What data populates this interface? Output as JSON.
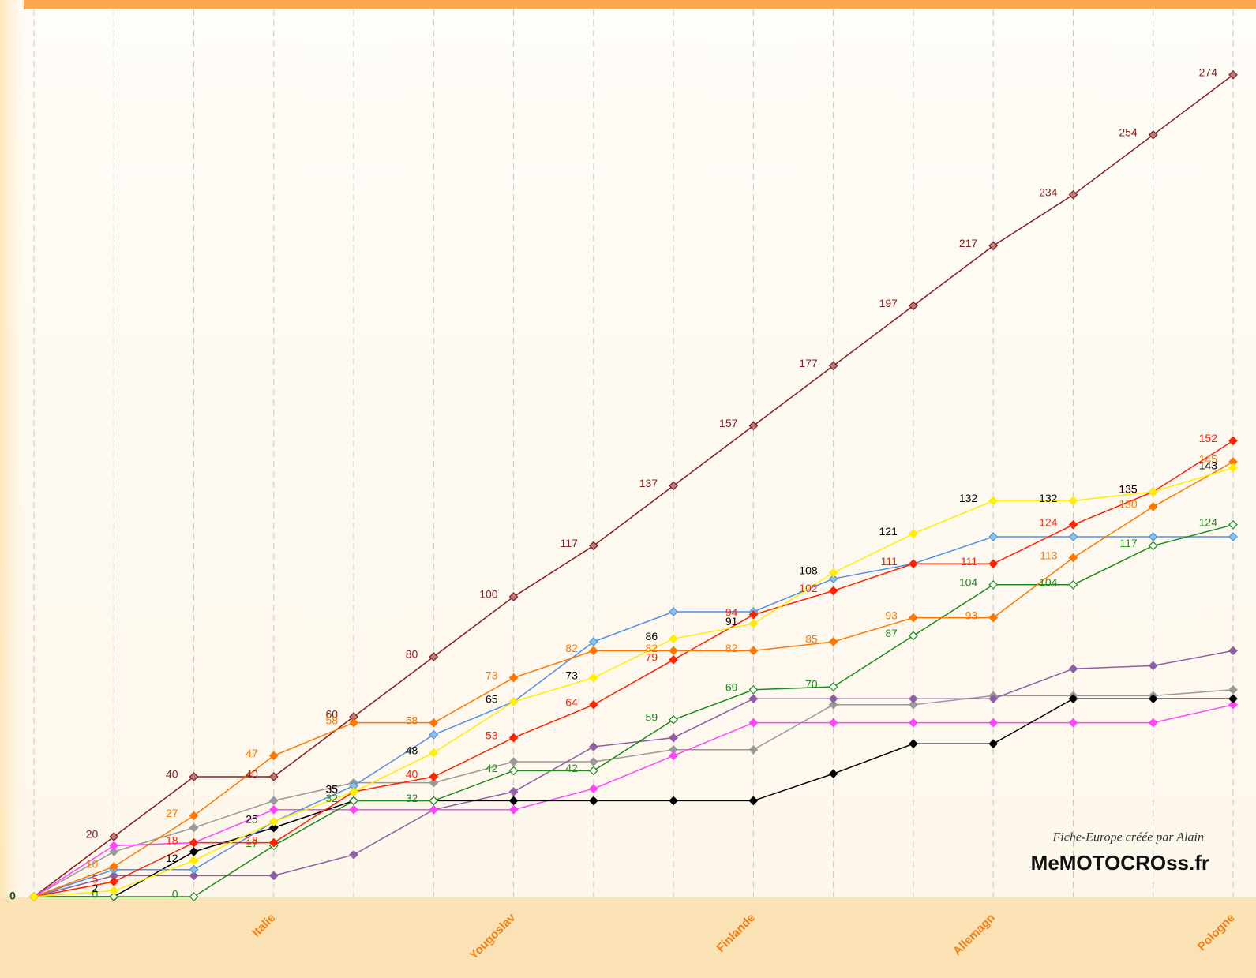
{
  "chart_data": {
    "type": "line",
    "categories": [
      null,
      null,
      null,
      "Italie",
      null,
      null,
      "Yougoslav",
      null,
      null,
      "Finlande",
      null,
      null,
      "Allemagn",
      null,
      null,
      "Pologne"
    ],
    "ylim": [
      0,
      295
    ],
    "yticks": [
      0
    ],
    "series": [
      {
        "color": "#8b1a1a",
        "marker_fill": "#b08080",
        "label_color": "#8b1a1a",
        "values": [
          0,
          20,
          40,
          40,
          60,
          80,
          100,
          117,
          137,
          157,
          177,
          197,
          217,
          234,
          254,
          274
        ]
      },
      {
        "color": "#999999",
        "values": [
          0,
          15,
          23,
          32,
          38,
          38,
          45,
          45,
          49,
          49,
          64,
          64,
          67,
          67,
          67,
          69
        ]
      },
      {
        "color": "#8e5ea2",
        "values": [
          0,
          7,
          7,
          7,
          14,
          29,
          35,
          50,
          53,
          66,
          66,
          66,
          66,
          76,
          77,
          82
        ]
      },
      {
        "color": "#ff44ff",
        "values": [
          0,
          17,
          18,
          29,
          29,
          29,
          29,
          36,
          47,
          58,
          58,
          58,
          58,
          58,
          58,
          64
        ]
      },
      {
        "color": "#000000",
        "values": [
          0,
          0,
          15,
          23,
          32,
          32,
          32,
          32,
          32,
          32,
          41,
          51,
          51,
          66,
          66,
          66
        ]
      },
      {
        "color": "#4f8fe8",
        "marker_fill": "#8ac4e0",
        "values": [
          0,
          9,
          9,
          25,
          37,
          54,
          65,
          85,
          95,
          95,
          106,
          111,
          120,
          120,
          120,
          120
        ]
      },
      {
        "color": "#1a8c1a",
        "marker_fill": "#ffffff",
        "label_color": "#1a8c1a",
        "values": [
          0,
          0,
          0,
          17,
          32,
          32,
          42,
          42,
          59,
          69,
          70,
          87,
          104,
          104,
          117,
          124
        ]
      },
      {
        "color": "#ff2200",
        "label_color": "#ff2200",
        "values": [
          0,
          5,
          18,
          18,
          35,
          40,
          53,
          64,
          79,
          94,
          102,
          111,
          111,
          124,
          135,
          152
        ]
      },
      {
        "color": "#ff7700",
        "label_color": "#ff7700",
        "values": [
          0,
          10,
          27,
          47,
          58,
          58,
          73,
          82,
          82,
          82,
          85,
          93,
          93,
          113,
          130,
          145
        ]
      },
      {
        "color": "#ffee00",
        "label_color": "#000000",
        "values": [
          0,
          2,
          12,
          25,
          35,
          48,
          65,
          73,
          86,
          91,
          108,
          121,
          132,
          132,
          135,
          143
        ]
      }
    ],
    "annotation": "Fiche-Europe créée par Alain",
    "logo": "MeMOTOCROss.fr"
  }
}
